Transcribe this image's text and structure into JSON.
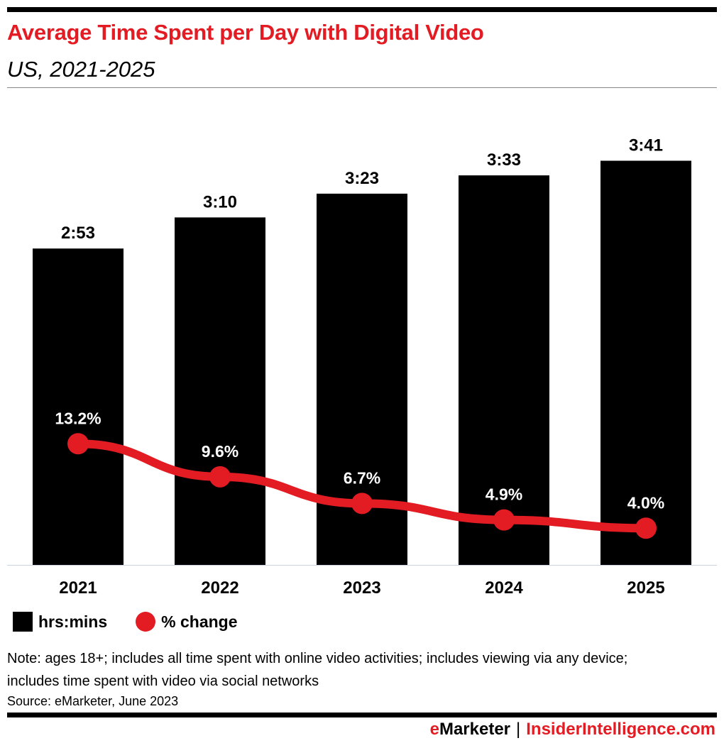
{
  "header": {
    "title": "Average Time Spent per Day with Digital Video",
    "subtitle": "US, 2021-2025"
  },
  "chart_data": {
    "type": "bar+line",
    "categories": [
      "2021",
      "2022",
      "2023",
      "2024",
      "2025"
    ],
    "series": [
      {
        "name": "hrs:mins",
        "type": "bar",
        "values_minutes": [
          173,
          190,
          203,
          213,
          221
        ],
        "labels": [
          "2:53",
          "3:10",
          "3:23",
          "3:33",
          "3:41"
        ],
        "color": "#000000"
      },
      {
        "name": "% change",
        "type": "line",
        "values": [
          13.2,
          9.6,
          6.7,
          4.9,
          4.0
        ],
        "labels": [
          "13.2%",
          "9.6%",
          "6.7%",
          "4.9%",
          "4.0%"
        ],
        "color": "#e31b23"
      }
    ],
    "legend_position": "bottom-left",
    "grid": false
  },
  "legend": {
    "bar_label": "hrs:mins",
    "line_label": "% change"
  },
  "note": "Note: ages 18+; includes all time spent with online video activities; includes viewing via any device; includes time spent with video via social networks",
  "source": "Source: eMarketer, June 2023",
  "footer": {
    "brand_e": "e",
    "brand_rest": "Marketer",
    "separator": "|",
    "brand2": "InsiderIntelligence.com"
  }
}
